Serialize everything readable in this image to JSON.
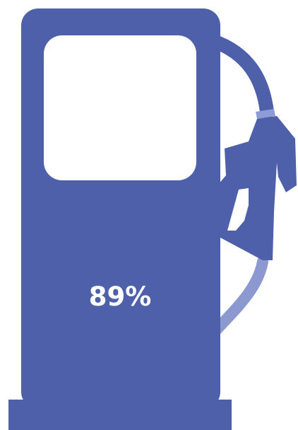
{
  "fuel_gauge": {
    "level_text": "89%",
    "level_percent": 89
  },
  "colors": {
    "pump_body": "#4e60a9",
    "hose_light": "#8c98d0",
    "window": "#ffffff",
    "hose_band": "#8f9bd6",
    "background": "#ffffff"
  },
  "icons": {
    "pump": "fuel-pump-icon",
    "nozzle": "fuel-nozzle-icon"
  }
}
